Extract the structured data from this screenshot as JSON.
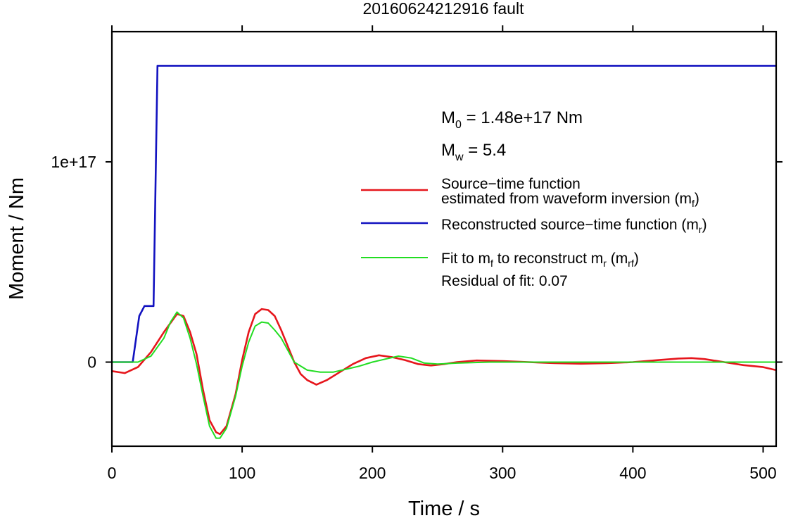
{
  "chart_data": {
    "type": "line",
    "title": "20160624212916 fault",
    "xlabel": "Time / s",
    "ylabel": "Moment / Nm",
    "xlim": [
      0,
      510
    ],
    "ylim": [
      -4.2e+16,
      1.65e+17
    ],
    "x_ticks": [
      0,
      100,
      200,
      300,
      400,
      500
    ],
    "x_tick_labels": [
      "0",
      "100",
      "200",
      "300",
      "400",
      "500"
    ],
    "y_ticks": [
      0,
      1e+17
    ],
    "y_tick_labels": [
      "0",
      "1e+17"
    ],
    "grid": false,
    "legend_position": "right",
    "annotations": {
      "m0_main": "M",
      "m0_sub": "0",
      "m0_rest": " = 1.48e+17 Nm",
      "mw_main": "M",
      "mw_sub": "w",
      "mw_rest": " = 5.4",
      "residual": "Residual of fit: 0.07"
    },
    "legend": [
      {
        "color": "#e6161c",
        "line1": "Source−time function",
        "line2": "estimated from waveform inversion (m",
        "line2_sub": "f",
        "line2_end": ")"
      },
      {
        "color": "#1212c0",
        "line1": "Reconstructed source−time function (m",
        "line1_sub": "r",
        "line1_end": ")"
      },
      {
        "color": "#22dd22",
        "line1_a": "Fit to m",
        "line1_sub1": "f",
        "line1_b": " to reconstruct m",
        "line1_sub2": "r",
        "line1_c": " (m",
        "line1_sub3": "rf",
        "line1_end": ")"
      }
    ],
    "series": [
      {
        "name": "Source−time function estimated from waveform inversion (mf)",
        "color": "#e6161c",
        "points": [
          [
            0,
            -4500000000000000.0
          ],
          [
            10,
            -5500000000000000.0
          ],
          [
            20,
            -2500000000000000.0
          ],
          [
            30,
            5000000000000000.0
          ],
          [
            40,
            1.5e+16
          ],
          [
            50,
            2.4e+16
          ],
          [
            55,
            2.3e+16
          ],
          [
            60,
            1.5e+16
          ],
          [
            65,
            4000000000000000.0
          ],
          [
            70,
            -1.4e+16
          ],
          [
            75,
            -2.9e+16
          ],
          [
            80,
            -3.5e+16
          ],
          [
            83,
            -3.6e+16
          ],
          [
            88,
            -3.2e+16
          ],
          [
            95,
            -1.6e+16
          ],
          [
            100,
            1000000000000000.0
          ],
          [
            105,
            1.5e+16
          ],
          [
            110,
            2.4e+16
          ],
          [
            115,
            2.65e+16
          ],
          [
            120,
            2.6e+16
          ],
          [
            125,
            2.3e+16
          ],
          [
            130,
            1.6e+16
          ],
          [
            135,
            8000000000000000.0
          ],
          [
            140,
            0
          ],
          [
            145,
            -6000000000000000.0
          ],
          [
            150,
            -9000000000000000.0
          ],
          [
            157,
            -1.13e+16
          ],
          [
            165,
            -9000000000000000.0
          ],
          [
            175,
            -5000000000000000.0
          ],
          [
            185,
            -1000000000000000.0
          ],
          [
            195,
            2000000000000000.0
          ],
          [
            205,
            3400000000000000.0
          ],
          [
            215,
            2500000000000000.0
          ],
          [
            225,
            1000000000000000.0
          ],
          [
            235,
            -1000000000000000.0
          ],
          [
            245,
            -1700000000000000.0
          ],
          [
            255,
            -1000000000000000.0
          ],
          [
            265,
            0
          ],
          [
            280,
            800000000000000.0
          ],
          [
            300,
            500000000000000.0
          ],
          [
            320,
            0
          ],
          [
            340,
            -500000000000000.0
          ],
          [
            360,
            -800000000000000.0
          ],
          [
            380,
            -500000000000000.0
          ],
          [
            400,
            0
          ],
          [
            420,
            1000000000000000.0
          ],
          [
            435,
            1800000000000000.0
          ],
          [
            445,
            2000000000000000.0
          ],
          [
            455,
            1500000000000000.0
          ],
          [
            470,
            0
          ],
          [
            485,
            -1500000000000000.0
          ],
          [
            500,
            -2500000000000000.0
          ],
          [
            510,
            -4000000000000000.0
          ]
        ]
      },
      {
        "name": "Reconstructed source−time function (mr)",
        "color": "#1212c0",
        "points": [
          [
            0,
            0
          ],
          [
            16,
            0
          ],
          [
            21,
            2.3e+16
          ],
          [
            25,
            2.8e+16
          ],
          [
            32,
            2.8e+16
          ],
          [
            35,
            1.48e+17
          ],
          [
            510,
            1.48e+17
          ]
        ]
      },
      {
        "name": "Fit to mf to reconstruct mr (mrf)",
        "color": "#22dd22",
        "points": [
          [
            0,
            0
          ],
          [
            20,
            0
          ],
          [
            30,
            3000000000000000.0
          ],
          [
            40,
            1.2e+16
          ],
          [
            45,
            2e+16
          ],
          [
            50,
            2.5e+16
          ],
          [
            55,
            2.2e+16
          ],
          [
            60,
            1.2e+16
          ],
          [
            65,
            -1000000000000000.0
          ],
          [
            70,
            -1.7e+16
          ],
          [
            75,
            -3.2e+16
          ],
          [
            80,
            -3.8e+16
          ],
          [
            83,
            -3.8e+16
          ],
          [
            88,
            -3.3e+16
          ],
          [
            95,
            -1.7e+16
          ],
          [
            100,
            -2000000000000000.0
          ],
          [
            105,
            1e+16
          ],
          [
            110,
            1.8e+16
          ],
          [
            115,
            2e+16
          ],
          [
            120,
            1.95e+16
          ],
          [
            125,
            1.6e+16
          ],
          [
            130,
            1.2e+16
          ],
          [
            135,
            6000000000000000.0
          ],
          [
            140,
            0
          ],
          [
            150,
            -4000000000000000.0
          ],
          [
            160,
            -5000000000000000.0
          ],
          [
            170,
            -5000000000000000.0
          ],
          [
            180,
            -3500000000000000.0
          ],
          [
            190,
            -2000000000000000.0
          ],
          [
            200,
            0
          ],
          [
            210,
            1500000000000000.0
          ],
          [
            220,
            3000000000000000.0
          ],
          [
            230,
            2000000000000000.0
          ],
          [
            240,
            -500000000000000.0
          ],
          [
            250,
            -1000000000000000.0
          ],
          [
            265,
            -500000000000000.0
          ],
          [
            290,
            0
          ],
          [
            510,
            0
          ]
        ]
      }
    ]
  }
}
